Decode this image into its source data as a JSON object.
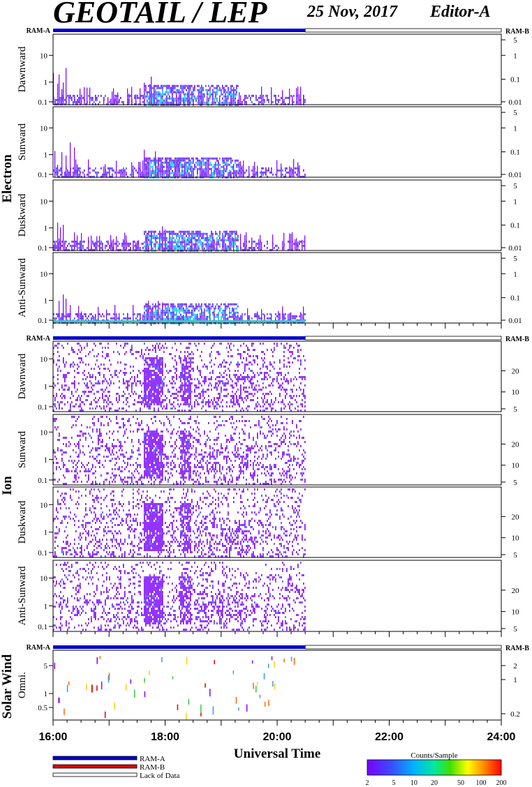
{
  "header": {
    "title": "GEOTAIL / LEP",
    "date": "25 Nov, 2017",
    "editor": "Editor-A"
  },
  "chart_data": {
    "type": "heatmap",
    "xlabel": "Universal Time",
    "x_ticks": [
      "16:00",
      "18:00",
      "20:00",
      "22:00",
      "24:00"
    ],
    "x_range_hours": [
      16,
      24
    ],
    "data_end_hour": 20.5,
    "mode_bar": {
      "left": "RAM-A",
      "right": "RAM-B"
    },
    "groups": [
      {
        "name": "Electron",
        "kind": "electron",
        "panels": [
          "Dawnward",
          "Sunward",
          "Duskward",
          "Anti-Sunward"
        ],
        "left_ticks": [
          "10",
          "1",
          "0.1"
        ],
        "right_ticks": [
          "5",
          "1",
          "0.1",
          "0.01"
        ]
      },
      {
        "name": "Ion",
        "kind": "ion",
        "panels": [
          "Dawnward",
          "Sunward",
          "Duskward",
          "Anti-Sunward"
        ],
        "left_ticks": [
          "10",
          "1",
          "0.1"
        ],
        "right_ticks": [
          "20",
          "10",
          "5"
        ]
      },
      {
        "name": "Solar Wind",
        "kind": "sw",
        "panels": [
          "Omni."
        ],
        "left_ticks": [
          "5",
          "1",
          "0.5"
        ],
        "right_ticks": [
          "2",
          "1",
          "0.2"
        ]
      }
    ],
    "legend": {
      "items": [
        "RAM-A",
        "RAM-B",
        "Lack of Data"
      ],
      "item_colors": [
        "#0000cc",
        "#dd0000",
        "#ffffff"
      ],
      "colorbar_title": "Counts/Sample",
      "colorbar_ticks": [
        "2",
        "5",
        "10",
        "20",
        "50",
        "100",
        "200"
      ]
    }
  }
}
